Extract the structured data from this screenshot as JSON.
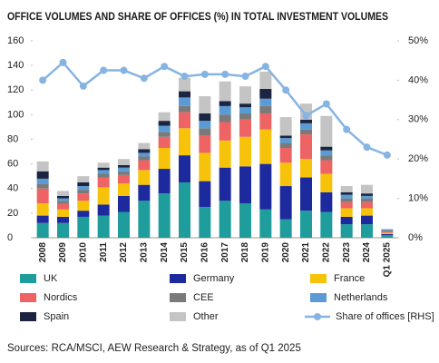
{
  "chart_data": {
    "type": "bar",
    "title": "OFFICE VOLUMES AND SHARE OF OFFICES (%) IN TOTAL INVESTMENT VOLUMES",
    "source": "Sources: RCA/MSCI, AEW Research & Strategy, as of Q1 2025",
    "stacked": true,
    "categories": [
      "2008",
      "2009",
      "2010",
      "2011",
      "2012",
      "2013",
      "2014",
      "2015",
      "2016",
      "2017",
      "2018",
      "2019",
      "2020",
      "2021",
      "2022",
      "2023",
      "2024",
      "Q1 2025"
    ],
    "ylim": [
      0,
      160
    ],
    "yticks": [
      0,
      20,
      40,
      60,
      80,
      100,
      120,
      140,
      160
    ],
    "y2lim": [
      0,
      50
    ],
    "y2ticks": [
      {
        "value": 0,
        "label": "0%"
      },
      {
        "value": 10,
        "label": "10%"
      },
      {
        "value": 20,
        "label": "20%"
      },
      {
        "value": 30,
        "label": "30%"
      },
      {
        "value": 40,
        "label": "40%"
      },
      {
        "value": 50,
        "label": "50%"
      }
    ],
    "series": [
      {
        "name": "UK",
        "color": "#1f9c9c",
        "values": [
          12,
          12,
          17,
          18,
          21,
          30,
          36,
          45,
          25,
          30,
          28,
          23,
          15,
          22,
          21,
          11,
          11,
          2
        ]
      },
      {
        "name": "Germany",
        "color": "#1c2a9e",
        "values": [
          6,
          5,
          5,
          9,
          13,
          13,
          20,
          22,
          21,
          27,
          30,
          37,
          27,
          27,
          16,
          6,
          7,
          1
        ]
      },
      {
        "name": "France",
        "color": "#f7c20a",
        "values": [
          10,
          6,
          8,
          14,
          10,
          12,
          17,
          22,
          23,
          22,
          24,
          28,
          19,
          15,
          15,
          7,
          6,
          1
        ]
      },
      {
        "name": "Nordics",
        "color": "#ee6363",
        "values": [
          12,
          5,
          6,
          8,
          7,
          8,
          9,
          13,
          14,
          15,
          14,
          13,
          12,
          20,
          11,
          5,
          5,
          1
        ]
      },
      {
        "name": "CEE",
        "color": "#7a7a7a",
        "values": [
          4,
          2,
          3,
          3,
          3,
          3,
          4,
          5,
          6,
          6,
          5,
          6,
          4,
          4,
          4,
          3,
          3,
          1
        ]
      },
      {
        "name": "Netherlands",
        "color": "#5b9bd5",
        "values": [
          4,
          2,
          3,
          3,
          3,
          3,
          5,
          7,
          6,
          7,
          5,
          6,
          4,
          5,
          4,
          3,
          2,
          1
        ]
      },
      {
        "name": "Spain",
        "color": "#1b2440",
        "values": [
          6,
          2,
          3,
          2,
          2,
          3,
          4,
          5,
          6,
          4,
          3,
          8,
          2,
          3,
          3,
          2,
          2,
          0
        ]
      },
      {
        "name": "Other",
        "color": "#c4c4c4",
        "values": [
          8,
          4,
          5,
          4,
          5,
          5,
          7,
          11,
          14,
          16,
          14,
          14,
          15,
          13,
          25,
          5,
          7,
          0
        ]
      },
      {
        "name": "Share of offices [RHS]",
        "color": "#86b4e2",
        "type": "line",
        "axis": "y2",
        "values": [
          40,
          44.5,
          38.5,
          42.5,
          42.5,
          40.5,
          43.5,
          41,
          41.5,
          41.5,
          41,
          43.5,
          37.5,
          31,
          34,
          27.5,
          23,
          21
        ]
      }
    ]
  }
}
